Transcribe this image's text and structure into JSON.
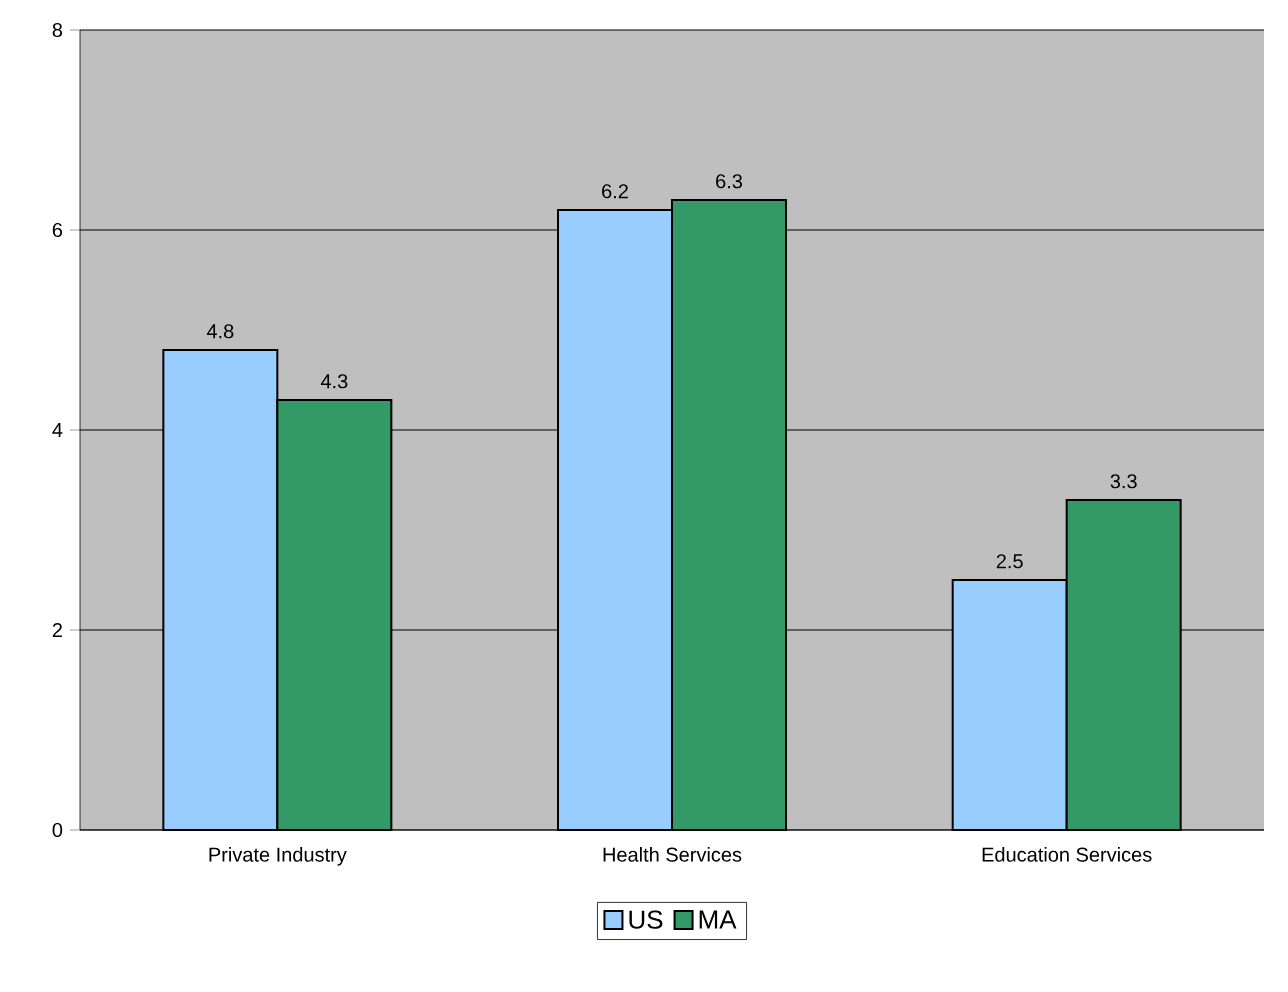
{
  "chart_data": {
    "type": "bar",
    "categories": [
      "Private Industry",
      "Health Services",
      "Education Services"
    ],
    "series": [
      {
        "name": "US",
        "color": "#99ccff",
        "values": [
          4.8,
          6.2,
          2.5
        ]
      },
      {
        "name": "MA",
        "color": "#339966",
        "values": [
          4.3,
          6.3,
          3.3
        ]
      }
    ],
    "ylim": [
      0,
      8
    ],
    "yticks": [
      0,
      2,
      4,
      6,
      8
    ],
    "grid": "y",
    "legend": "bottom",
    "data_labels": true
  }
}
